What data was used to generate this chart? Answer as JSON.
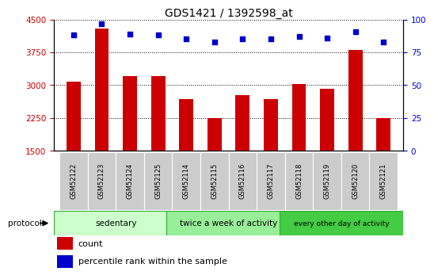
{
  "title": "GDS1421 / 1392598_at",
  "samples": [
    "GSM52122",
    "GSM52123",
    "GSM52124",
    "GSM52125",
    "GSM52114",
    "GSM52115",
    "GSM52116",
    "GSM52117",
    "GSM52118",
    "GSM52119",
    "GSM52120",
    "GSM52121"
  ],
  "counts": [
    3080,
    4300,
    3200,
    3200,
    2680,
    2250,
    2780,
    2680,
    3020,
    2920,
    3800,
    2250
  ],
  "percentile_ranks": [
    88,
    97,
    89,
    88,
    85,
    83,
    85,
    85,
    87,
    86,
    91,
    83
  ],
  "groups": [
    {
      "label": "sedentary",
      "start": 0,
      "end": 4,
      "color": "#ccffcc"
    },
    {
      "label": "twice a week of activity",
      "start": 4,
      "end": 8,
      "color": "#99ee99"
    },
    {
      "label": "every other day of activity",
      "start": 8,
      "end": 12,
      "color": "#44cc44"
    }
  ],
  "ylim_left": [
    1500,
    4500
  ],
  "ylim_right": [
    0,
    100
  ],
  "yticks_left": [
    1500,
    2250,
    3000,
    3750,
    4500
  ],
  "yticks_right": [
    0,
    25,
    50,
    75,
    100
  ],
  "bar_color": "#cc0000",
  "dot_color": "#0000cc",
  "bar_width": 0.5,
  "grid_color": "#000000",
  "bg_color": "#ffffff",
  "tick_label_color_left": "#cc0000",
  "tick_label_color_right": "#0000cc",
  "legend_count_color": "#cc0000",
  "legend_pct_color": "#0000cc",
  "sample_box_color": "#cccccc",
  "protocol_border_color": "#33aa33"
}
